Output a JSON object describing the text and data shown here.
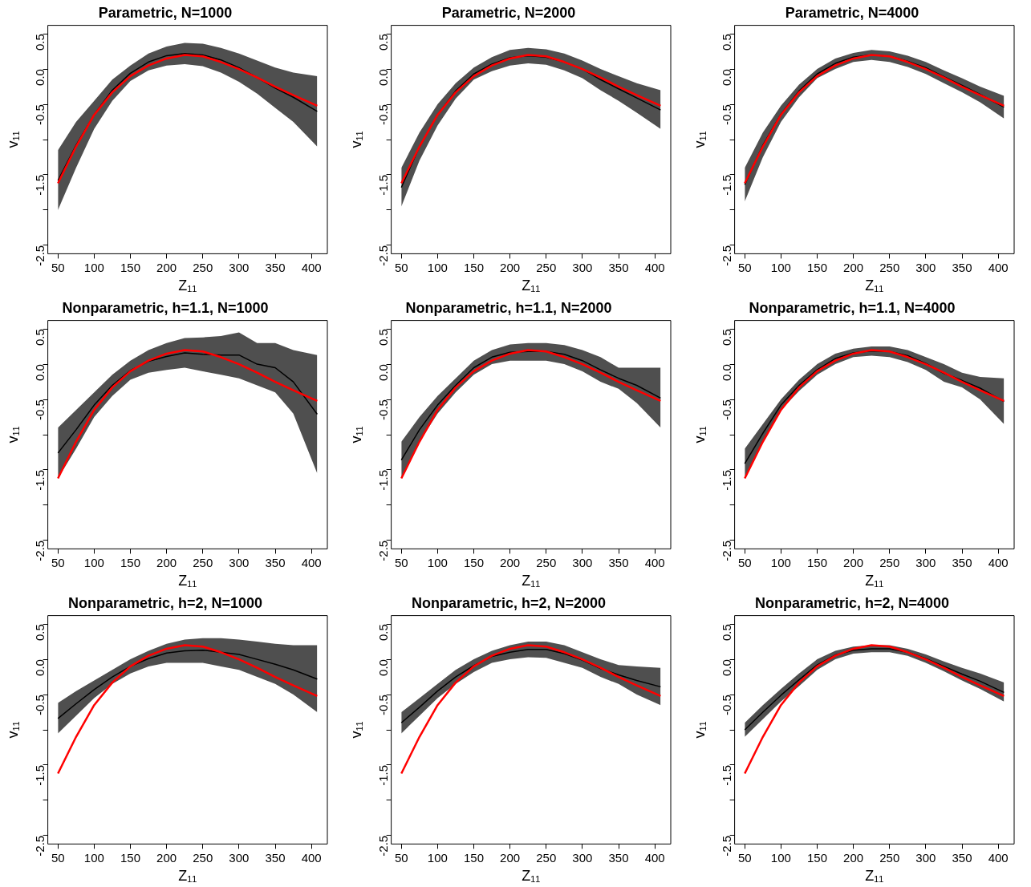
{
  "chart_data": [
    {
      "type": "line",
      "title": "Parametric, N=1000",
      "xlabel": "Z₁₁",
      "ylabel": "v₁₁",
      "x": [
        50,
        75,
        100,
        125,
        150,
        175,
        200,
        225,
        250,
        275,
        300,
        325,
        350,
        375,
        408
      ],
      "xlim": [
        36,
        422
      ],
      "xticks": [
        50,
        100,
        150,
        200,
        250,
        300,
        350,
        400
      ],
      "ylim": [
        -2.62,
        0.62
      ],
      "yticks": [
        {
          "value": -2.5,
          "label": "-2.5"
        },
        {
          "value": -2,
          "label": null
        },
        {
          "value": -1.5,
          "label": "-1.5"
        },
        {
          "value": -1,
          "label": null
        },
        {
          "value": -0.5,
          "label": "-0.5"
        },
        {
          "value": 0,
          "label": "0.0"
        },
        {
          "value": 0.5,
          "label": "0.5"
        }
      ],
      "series": [
        {
          "color": "#000000",
          "values": [
            -1.58,
            -1.08,
            -0.65,
            -0.3,
            -0.06,
            0.1,
            0.19,
            0.22,
            0.2,
            0.13,
            0.02,
            -0.12,
            -0.27,
            -0.4,
            -0.6
          ],
          "lower": [
            -2.0,
            -1.4,
            -0.85,
            -0.45,
            -0.17,
            -0.02,
            0.05,
            0.07,
            0.04,
            -0.05,
            -0.18,
            -0.35,
            -0.55,
            -0.75,
            -1.1
          ],
          "upper": [
            -1.15,
            -0.75,
            -0.45,
            -0.15,
            0.05,
            0.22,
            0.32,
            0.37,
            0.36,
            0.3,
            0.22,
            0.12,
            0.02,
            -0.05,
            -0.1
          ]
        },
        {
          "color": "#ff0000",
          "values": [
            -1.62,
            -1.1,
            -0.65,
            -0.33,
            -0.1,
            0.05,
            0.15,
            0.2,
            0.18,
            0.1,
            0.0,
            -0.12,
            -0.25,
            -0.37,
            -0.52
          ]
        }
      ]
    },
    {
      "type": "line",
      "title": "Parametric, N=2000",
      "xlabel": "Z₁₁",
      "ylabel": "v₁₁",
      "x": [
        50,
        75,
        100,
        125,
        150,
        175,
        200,
        225,
        250,
        275,
        300,
        325,
        350,
        375,
        408
      ],
      "xlim": [
        36,
        422
      ],
      "xticks": [
        50,
        100,
        150,
        200,
        250,
        300,
        350,
        400
      ],
      "ylim": [
        -2.62,
        0.62
      ],
      "yticks": [
        {
          "value": -2.5,
          "label": "-2.5"
        },
        {
          "value": -2,
          "label": null
        },
        {
          "value": -1.5,
          "label": "-1.5"
        },
        {
          "value": -1,
          "label": null
        },
        {
          "value": -0.5,
          "label": "-0.5"
        },
        {
          "value": 0,
          "label": "0.0"
        },
        {
          "value": 0.5,
          "label": "0.5"
        }
      ],
      "series": [
        {
          "color": "#000000",
          "values": [
            -1.68,
            -1.1,
            -0.65,
            -0.31,
            -0.07,
            0.07,
            0.16,
            0.19,
            0.17,
            0.1,
            0.0,
            -0.15,
            -0.28,
            -0.41,
            -0.58
          ],
          "lower": [
            -1.95,
            -1.3,
            -0.8,
            -0.42,
            -0.15,
            -0.03,
            0.05,
            0.08,
            0.06,
            -0.02,
            -0.13,
            -0.3,
            -0.45,
            -0.62,
            -0.85
          ],
          "upper": [
            -1.4,
            -0.9,
            -0.5,
            -0.2,
            0.02,
            0.17,
            0.27,
            0.3,
            0.28,
            0.22,
            0.12,
            0.0,
            -0.1,
            -0.2,
            -0.3
          ]
        },
        {
          "color": "#ff0000",
          "values": [
            -1.62,
            -1.1,
            -0.65,
            -0.33,
            -0.1,
            0.05,
            0.15,
            0.2,
            0.18,
            0.1,
            0.0,
            -0.12,
            -0.25,
            -0.37,
            -0.52
          ]
        }
      ]
    },
    {
      "type": "line",
      "title": "Parametric, N=4000",
      "xlabel": "Z₁₁",
      "ylabel": "v₁₁",
      "x": [
        50,
        75,
        100,
        125,
        150,
        175,
        200,
        225,
        250,
        275,
        300,
        325,
        350,
        375,
        408
      ],
      "xlim": [
        36,
        422
      ],
      "xticks": [
        50,
        100,
        150,
        200,
        250,
        300,
        350,
        400
      ],
      "ylim": [
        -2.62,
        0.62
      ],
      "yticks": [
        {
          "value": -2.5,
          "label": "-2.5"
        },
        {
          "value": -2,
          "label": null
        },
        {
          "value": -1.5,
          "label": "-1.5"
        },
        {
          "value": -1,
          "label": null
        },
        {
          "value": -0.5,
          "label": "-0.5"
        },
        {
          "value": 0,
          "label": "0.0"
        },
        {
          "value": 0.5,
          "label": "0.5"
        }
      ],
      "series": [
        {
          "color": "#000000",
          "values": [
            -1.64,
            -1.08,
            -0.64,
            -0.31,
            -0.07,
            0.08,
            0.17,
            0.2,
            0.18,
            0.11,
            0.02,
            -0.11,
            -0.23,
            -0.36,
            -0.54
          ],
          "lower": [
            -1.88,
            -1.25,
            -0.75,
            -0.4,
            -0.13,
            0.0,
            0.1,
            0.13,
            0.1,
            0.03,
            -0.07,
            -0.2,
            -0.33,
            -0.47,
            -0.7
          ],
          "upper": [
            -1.4,
            -0.9,
            -0.52,
            -0.22,
            0.0,
            0.15,
            0.23,
            0.27,
            0.25,
            0.19,
            0.1,
            -0.02,
            -0.13,
            -0.25,
            -0.38
          ]
        },
        {
          "color": "#ff0000",
          "values": [
            -1.62,
            -1.1,
            -0.65,
            -0.33,
            -0.1,
            0.05,
            0.15,
            0.2,
            0.18,
            0.1,
            0.0,
            -0.12,
            -0.25,
            -0.37,
            -0.52
          ]
        }
      ]
    },
    {
      "type": "line",
      "title": "Nonparametric, h=1.1, N=1000",
      "xlabel": "Z₁₁",
      "ylabel": "v₁₁",
      "x": [
        50,
        75,
        100,
        125,
        150,
        175,
        200,
        225,
        250,
        275,
        300,
        325,
        350,
        375,
        408
      ],
      "xlim": [
        36,
        422
      ],
      "xticks": [
        50,
        100,
        150,
        200,
        250,
        300,
        350,
        400
      ],
      "ylim": [
        -2.62,
        0.62
      ],
      "yticks": [
        {
          "value": -2.5,
          "label": "-2.5"
        },
        {
          "value": -2,
          "label": null
        },
        {
          "value": -1.5,
          "label": "-1.5"
        },
        {
          "value": -1,
          "label": null
        },
        {
          "value": -0.5,
          "label": "-0.5"
        },
        {
          "value": 0,
          "label": "0.0"
        },
        {
          "value": 0.5,
          "label": "0.5"
        }
      ],
      "series": [
        {
          "color": "#000000",
          "values": [
            -1.26,
            -0.93,
            -0.58,
            -0.3,
            -0.09,
            0.04,
            0.11,
            0.16,
            0.14,
            0.13,
            0.13,
            0.0,
            -0.05,
            -0.25,
            -0.71
          ],
          "lower": [
            -1.62,
            -1.2,
            -0.75,
            -0.45,
            -0.22,
            -0.12,
            -0.08,
            -0.05,
            -0.1,
            -0.15,
            -0.2,
            -0.3,
            -0.4,
            -0.7,
            -1.55
          ],
          "upper": [
            -0.9,
            -0.65,
            -0.4,
            -0.15,
            0.05,
            0.2,
            0.3,
            0.37,
            0.38,
            0.4,
            0.45,
            0.3,
            0.3,
            0.2,
            0.13
          ]
        },
        {
          "color": "#ff0000",
          "values": [
            -1.62,
            -1.1,
            -0.65,
            -0.33,
            -0.1,
            0.05,
            0.15,
            0.2,
            0.18,
            0.1,
            0.0,
            -0.12,
            -0.25,
            -0.37,
            -0.52
          ]
        }
      ]
    },
    {
      "type": "line",
      "title": "Nonparametric, h=1.1, N=2000",
      "xlabel": "Z₁₁",
      "ylabel": "v₁₁",
      "x": [
        50,
        75,
        100,
        125,
        150,
        175,
        200,
        225,
        250,
        275,
        300,
        325,
        350,
        375,
        408
      ],
      "xlim": [
        36,
        422
      ],
      "xticks": [
        50,
        100,
        150,
        200,
        250,
        300,
        350,
        400
      ],
      "ylim": [
        -2.62,
        0.62
      ],
      "yticks": [
        {
          "value": -2.5,
          "label": "-2.5"
        },
        {
          "value": -2,
          "label": null
        },
        {
          "value": -1.5,
          "label": "-1.5"
        },
        {
          "value": -1,
          "label": null
        },
        {
          "value": -0.5,
          "label": "-0.5"
        },
        {
          "value": 0,
          "label": "0.0"
        },
        {
          "value": 0.5,
          "label": "0.5"
        }
      ],
      "series": [
        {
          "color": "#000000",
          "values": [
            -1.36,
            -0.93,
            -0.58,
            -0.3,
            -0.05,
            0.1,
            0.17,
            0.18,
            0.18,
            0.14,
            0.05,
            -0.08,
            -0.2,
            -0.3,
            -0.48
          ],
          "lower": [
            -1.62,
            -1.1,
            -0.7,
            -0.4,
            -0.15,
            0.0,
            0.05,
            0.05,
            0.05,
            0.0,
            -0.1,
            -0.25,
            -0.35,
            -0.55,
            -0.9
          ],
          "upper": [
            -1.1,
            -0.75,
            -0.45,
            -0.2,
            0.05,
            0.2,
            0.28,
            0.3,
            0.3,
            0.27,
            0.2,
            0.1,
            -0.05,
            -0.05,
            -0.05
          ]
        },
        {
          "color": "#ff0000",
          "values": [
            -1.62,
            -1.1,
            -0.65,
            -0.33,
            -0.1,
            0.05,
            0.15,
            0.2,
            0.18,
            0.1,
            0.0,
            -0.12,
            -0.25,
            -0.37,
            -0.52
          ]
        }
      ]
    },
    {
      "type": "line",
      "title": "Nonparametric, h=1.1, N=4000",
      "xlabel": "Z₁₁",
      "ylabel": "v₁₁",
      "x": [
        50,
        75,
        100,
        125,
        150,
        175,
        200,
        225,
        250,
        275,
        300,
        325,
        350,
        375,
        408
      ],
      "xlim": [
        36,
        422
      ],
      "xticks": [
        50,
        100,
        150,
        200,
        250,
        300,
        350,
        400
      ],
      "ylim": [
        -2.62,
        0.62
      ],
      "yticks": [
        {
          "value": -2.5,
          "label": "-2.5"
        },
        {
          "value": -2,
          "label": null
        },
        {
          "value": -1.5,
          "label": "-1.5"
        },
        {
          "value": -1,
          "label": null
        },
        {
          "value": -0.5,
          "label": "-0.5"
        },
        {
          "value": 0,
          "label": "0.0"
        },
        {
          "value": 0.5,
          "label": "0.5"
        }
      ],
      "series": [
        {
          "color": "#000000",
          "values": [
            -1.41,
            -0.98,
            -0.58,
            -0.3,
            -0.08,
            0.08,
            0.16,
            0.19,
            0.18,
            0.12,
            0.01,
            -0.13,
            -0.23,
            -0.34,
            -0.53
          ],
          "lower": [
            -1.62,
            -1.1,
            -0.65,
            -0.38,
            -0.15,
            0.0,
            0.1,
            0.12,
            0.1,
            0.03,
            -0.08,
            -0.25,
            -0.33,
            -0.5,
            -0.85
          ],
          "upper": [
            -1.2,
            -0.85,
            -0.5,
            -0.22,
            0.0,
            0.15,
            0.22,
            0.25,
            0.25,
            0.2,
            0.1,
            0.0,
            -0.12,
            -0.18,
            -0.2
          ]
        },
        {
          "color": "#ff0000",
          "values": [
            -1.62,
            -1.1,
            -0.65,
            -0.33,
            -0.1,
            0.05,
            0.15,
            0.2,
            0.18,
            0.1,
            0.0,
            -0.12,
            -0.25,
            -0.37,
            -0.52
          ]
        }
      ]
    },
    {
      "type": "line",
      "title": "Nonparametric, h=2, N=1000",
      "xlabel": "Z₁₁",
      "ylabel": "v₁₁",
      "x": [
        50,
        75,
        100,
        125,
        150,
        175,
        200,
        225,
        250,
        275,
        300,
        325,
        350,
        375,
        408
      ],
      "xlim": [
        36,
        422
      ],
      "xticks": [
        50,
        100,
        150,
        200,
        250,
        300,
        350,
        400
      ],
      "ylim": [
        -2.62,
        0.62
      ],
      "yticks": [
        {
          "value": -2.5,
          "label": "-2.5"
        },
        {
          "value": -2,
          "label": null
        },
        {
          "value": -1.5,
          "label": "-1.5"
        },
        {
          "value": -1,
          "label": null
        },
        {
          "value": -0.5,
          "label": "-0.5"
        },
        {
          "value": 0,
          "label": "0.0"
        },
        {
          "value": 0.5,
          "label": "0.5"
        }
      ],
      "series": [
        {
          "color": "#000000",
          "values": [
            -0.84,
            -0.63,
            -0.43,
            -0.25,
            -0.1,
            0.01,
            0.09,
            0.12,
            0.13,
            0.1,
            0.07,
            0.0,
            -0.07,
            -0.15,
            -0.28
          ],
          "lower": [
            -1.05,
            -0.8,
            -0.55,
            -0.35,
            -0.2,
            -0.1,
            -0.05,
            -0.05,
            -0.05,
            -0.1,
            -0.15,
            -0.25,
            -0.35,
            -0.5,
            -0.75
          ],
          "upper": [
            -0.62,
            -0.45,
            -0.3,
            -0.15,
            0.0,
            0.12,
            0.22,
            0.28,
            0.3,
            0.3,
            0.28,
            0.25,
            0.22,
            0.2,
            0.2
          ]
        },
        {
          "color": "#ff0000",
          "values": [
            -1.62,
            -1.1,
            -0.65,
            -0.33,
            -0.1,
            0.05,
            0.15,
            0.2,
            0.18,
            0.1,
            0.0,
            -0.12,
            -0.25,
            -0.37,
            -0.52
          ]
        }
      ]
    },
    {
      "type": "line",
      "title": "Nonparametric, h=2, N=2000",
      "xlabel": "Z₁₁",
      "ylabel": "v₁₁",
      "x": [
        50,
        75,
        100,
        125,
        150,
        175,
        200,
        225,
        250,
        275,
        300,
        325,
        350,
        375,
        408
      ],
      "xlim": [
        36,
        422
      ],
      "xticks": [
        50,
        100,
        150,
        200,
        250,
        300,
        350,
        400
      ],
      "ylim": [
        -2.62,
        0.62
      ],
      "yticks": [
        {
          "value": -2.5,
          "label": "-2.5"
        },
        {
          "value": -2,
          "label": null
        },
        {
          "value": -1.5,
          "label": "-1.5"
        },
        {
          "value": -1,
          "label": null
        },
        {
          "value": -0.5,
          "label": "-0.5"
        },
        {
          "value": 0,
          "label": "0.0"
        },
        {
          "value": 0.5,
          "label": "0.5"
        }
      ],
      "series": [
        {
          "color": "#000000",
          "values": [
            -0.9,
            -0.68,
            -0.45,
            -0.25,
            -0.09,
            0.04,
            0.1,
            0.14,
            0.14,
            0.08,
            -0.01,
            -0.13,
            -0.22,
            -0.3,
            -0.39
          ],
          "lower": [
            -1.05,
            -0.8,
            -0.55,
            -0.35,
            -0.18,
            -0.05,
            0.0,
            0.03,
            0.02,
            -0.05,
            -0.12,
            -0.25,
            -0.35,
            -0.5,
            -0.65
          ],
          "upper": [
            -0.75,
            -0.55,
            -0.35,
            -0.15,
            0.0,
            0.12,
            0.2,
            0.25,
            0.25,
            0.2,
            0.1,
            0.0,
            -0.08,
            -0.1,
            -0.12
          ]
        },
        {
          "color": "#ff0000",
          "values": [
            -1.62,
            -1.1,
            -0.65,
            -0.33,
            -0.1,
            0.05,
            0.15,
            0.2,
            0.18,
            0.1,
            0.0,
            -0.12,
            -0.25,
            -0.37,
            -0.52
          ]
        }
      ]
    },
    {
      "type": "line",
      "title": "Nonparametric, h=2, N=4000",
      "xlabel": "Z₁₁",
      "ylabel": "v₁₁",
      "x": [
        50,
        75,
        100,
        125,
        150,
        175,
        200,
        225,
        250,
        275,
        300,
        325,
        350,
        375,
        408
      ],
      "xlim": [
        36,
        422
      ],
      "xticks": [
        50,
        100,
        150,
        200,
        250,
        300,
        350,
        400
      ],
      "ylim": [
        -2.62,
        0.62
      ],
      "yticks": [
        {
          "value": -2.5,
          "label": "-2.5"
        },
        {
          "value": -2,
          "label": null
        },
        {
          "value": -1.5,
          "label": "-1.5"
        },
        {
          "value": -1,
          "label": null
        },
        {
          "value": -0.5,
          "label": "-0.5"
        },
        {
          "value": 0,
          "label": "0.0"
        },
        {
          "value": 0.5,
          "label": "0.5"
        }
      ],
      "series": [
        {
          "color": "#000000",
          "values": [
            -1.0,
            -0.75,
            -0.51,
            -0.29,
            -0.08,
            0.06,
            0.13,
            0.15,
            0.15,
            0.1,
            0.01,
            -0.1,
            -0.21,
            -0.31,
            -0.47
          ],
          "lower": [
            -1.1,
            -0.85,
            -0.6,
            -0.38,
            -0.15,
            0.0,
            0.08,
            0.1,
            0.1,
            0.05,
            -0.05,
            -0.17,
            -0.3,
            -0.42,
            -0.6
          ],
          "upper": [
            -0.9,
            -0.65,
            -0.42,
            -0.2,
            0.0,
            0.12,
            0.18,
            0.2,
            0.2,
            0.15,
            0.07,
            -0.03,
            -0.12,
            -0.2,
            -0.33
          ]
        },
        {
          "color": "#ff0000",
          "values": [
            -1.62,
            -1.1,
            -0.65,
            -0.33,
            -0.1,
            0.05,
            0.15,
            0.2,
            0.18,
            0.1,
            0.0,
            -0.12,
            -0.25,
            -0.37,
            -0.52
          ]
        }
      ]
    }
  ]
}
